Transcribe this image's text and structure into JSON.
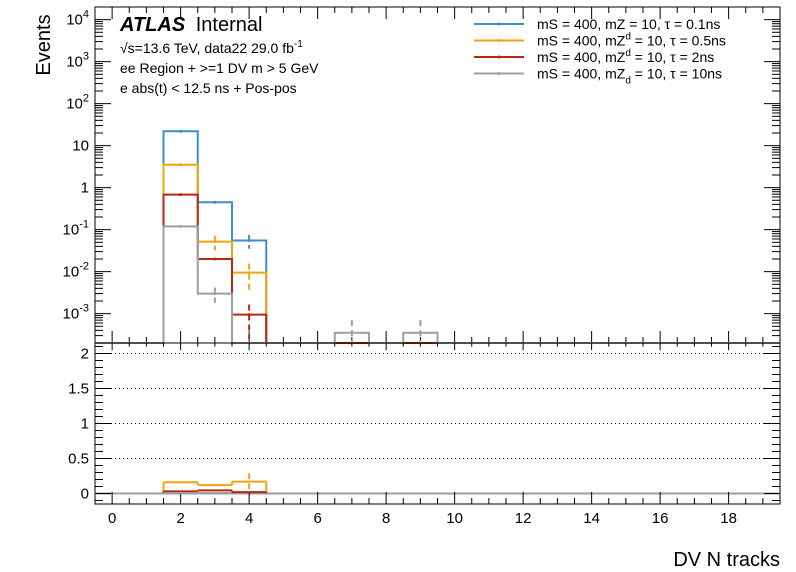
{
  "chart_data": {
    "type": "histogram",
    "x_title": "DV N tracks",
    "upper_y_title": "Events",
    "x_axis": {
      "range": [
        -0.5,
        19.5
      ],
      "ticks": [
        0,
        2,
        4,
        6,
        8,
        10,
        12,
        14,
        16,
        18
      ]
    },
    "upper_y_axis": {
      "scale": "log",
      "range": [
        0.0002,
        20000
      ],
      "tick_labels": [
        {
          "value": 10000,
          "base": "10",
          "exp": "4"
        },
        {
          "value": 1000,
          "base": "10",
          "exp": "3"
        },
        {
          "value": 100,
          "base": "10",
          "exp": "2"
        },
        {
          "value": 10,
          "base": "10",
          "exp": ""
        },
        {
          "value": 1,
          "base": "1",
          "exp": ""
        },
        {
          "value": 0.1,
          "base": "10",
          "exp": "-1"
        },
        {
          "value": 0.01,
          "base": "10",
          "exp": "-2"
        },
        {
          "value": 0.001,
          "base": "10",
          "exp": "-3"
        }
      ]
    },
    "lower_y_axis": {
      "range": [
        -0.15,
        2.15
      ],
      "ticks": [
        0,
        0.5,
        1,
        1.5,
        2
      ],
      "tick_labels": [
        "0",
        "0.5",
        "1",
        "1.5",
        "2"
      ],
      "grid_lines": [
        0.5,
        1,
        1.5,
        2
      ]
    },
    "annotations": {
      "atlas": "ATLAS",
      "internal": "Internal",
      "line2_pre": "√s=13.6 TeV, data22 29.0 fb",
      "line2_sup": "-1",
      "line3": "ee Region + >=1 DV m > 5 GeV",
      "line4": "e abs(t) < 12.5 ns + Pos-pos"
    },
    "legend_position": "top-right",
    "series": [
      {
        "name": "mS = 400, mZ_d = 10, τ = 0.1ns",
        "label_main": "mS = 400, mZ",
        "label_sub": "",
        "label_tail": " = 10, τ = 0.1ns",
        "color": "#3b8fd0",
        "values": [
          0,
          0,
          22,
          0.45,
          0.055,
          0,
          0,
          0,
          0,
          0,
          0,
          0,
          0,
          0,
          0,
          0,
          0,
          0,
          0,
          0
        ],
        "errors": [
          0,
          0,
          0,
          0,
          0.02,
          0,
          0,
          0,
          0,
          0,
          0,
          0,
          0,
          0,
          0,
          0,
          0,
          0,
          0,
          0
        ],
        "ratio": []
      },
      {
        "name": "mS = 400, mZ^d = 10, τ = 0.5ns",
        "label_main": "mS = 400, mZ",
        "label_sup": "d",
        "label_tail": " = 10, τ = 0.5ns",
        "color": "#f5a20f",
        "values": [
          0,
          0,
          3.5,
          0.052,
          0.0095,
          0,
          0,
          0,
          0,
          0,
          0,
          0,
          0,
          0,
          0,
          0,
          0,
          0,
          0,
          0
        ],
        "errors": [
          0,
          0,
          0,
          0.02,
          0.006,
          0,
          0,
          0,
          0,
          0,
          0,
          0,
          0,
          0,
          0,
          0,
          0,
          0,
          0,
          0
        ],
        "ratio": [
          0,
          0,
          0.16,
          0.12,
          0.17,
          0,
          0,
          0,
          0,
          0,
          0,
          0,
          0,
          0,
          0,
          0,
          0,
          0,
          0,
          0
        ],
        "ratio_errors": [
          0,
          0,
          0,
          0,
          0.12,
          0,
          0,
          0,
          0,
          0,
          0,
          0,
          0,
          0,
          0,
          0,
          0,
          0,
          0,
          0
        ]
      },
      {
        "name": "mS = 400, mZ^d = 10, τ = 2ns",
        "label_main": "mS = 400, mZ",
        "label_sup": "d",
        "label_tail": " = 10, τ = 2ns",
        "color": "#b7280f",
        "values": [
          0,
          0,
          0.68,
          0.02,
          0.00095,
          0,
          0,
          0,
          0,
          0,
          0,
          0,
          0,
          0,
          0,
          0,
          0,
          0,
          0,
          0
        ],
        "errors": [
          0,
          0,
          0,
          0,
          0.0007,
          0,
          0,
          0,
          0,
          0,
          0,
          0,
          0,
          0,
          0,
          0,
          0,
          0,
          0,
          0
        ],
        "ratio": [
          0,
          0,
          0.03,
          0.045,
          0.02,
          0,
          0,
          0,
          0,
          0,
          0,
          0,
          0,
          0,
          0,
          0,
          0,
          0,
          0,
          0
        ]
      },
      {
        "name": "mS = 400, mZ_d = 10, τ = 10ns",
        "label_main": "mS = 400, mZ",
        "label_sub": "d",
        "label_tail": " = 10, τ = 10ns",
        "color": "#9aa0a4",
        "values": [
          0,
          0,
          0.12,
          0.003,
          0,
          0,
          0,
          0.00035,
          0,
          0.00035,
          0,
          0,
          0,
          0,
          0,
          0,
          0,
          0,
          0,
          0
        ],
        "errors": [
          0,
          0,
          0,
          0.0012,
          0,
          0,
          0,
          0.00035,
          0,
          0.00035,
          0,
          0,
          0,
          0,
          0,
          0,
          0,
          0,
          0,
          0
        ],
        "ratio": [
          0,
          0,
          0.006,
          0.007,
          0,
          0,
          0,
          0,
          0,
          0,
          0,
          0,
          0,
          0,
          0,
          0,
          0,
          0,
          0,
          0
        ]
      }
    ]
  }
}
